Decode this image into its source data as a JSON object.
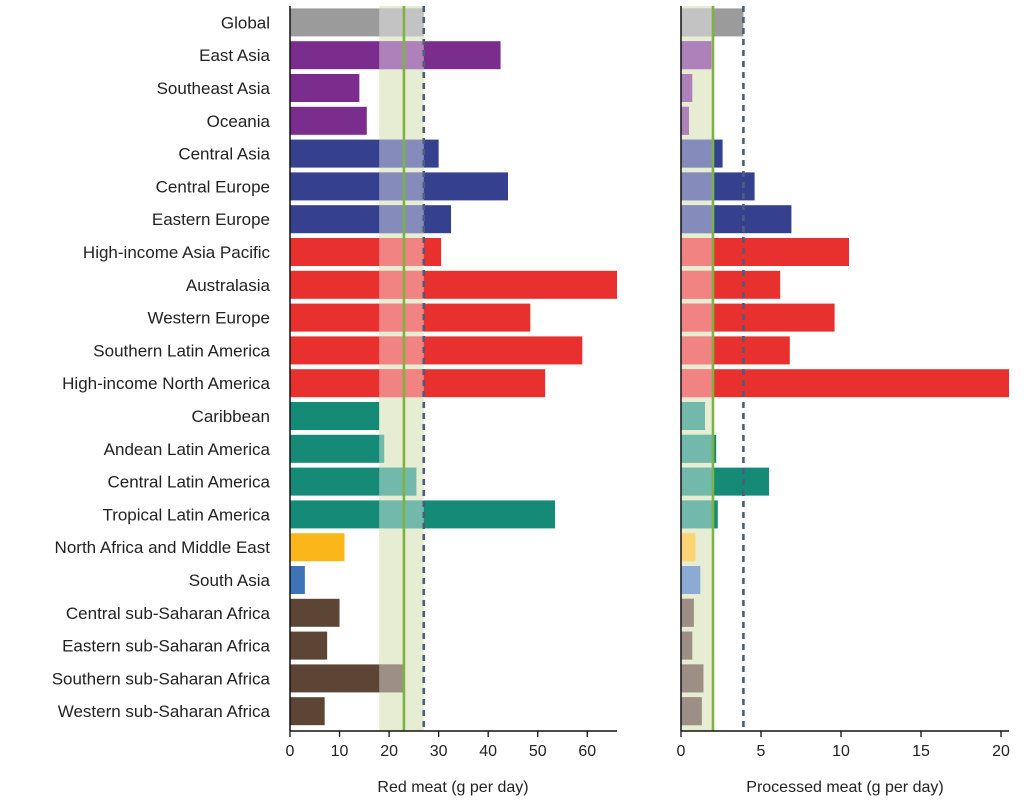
{
  "colors": {
    "global": "#9b9b9b",
    "asia": "#7b2d8e",
    "central_asia_europe": "#35408f",
    "high_income": "#e8312f",
    "latin_america": "#158a76",
    "north_africa": "#fbb71a",
    "south_asia": "#3f73b8",
    "sub_saharan": "#5d4536",
    "recommended_band": "#e6edd2",
    "optimal_line": "#7cb342",
    "global_mean_line": "#4c5f7a"
  },
  "chart_data": [
    {
      "type": "bar",
      "orientation": "horizontal",
      "xlabel": "Red meat (g per day)",
      "xlim": [
        0,
        66
      ],
      "xticks": [
        0,
        10,
        20,
        30,
        40,
        50,
        60
      ],
      "categories": [
        "Global",
        "East Asia",
        "Southeast Asia",
        "Oceania",
        "Central Asia",
        "Central Europe",
        "Eastern Europe",
        "High-income Asia Pacific",
        "Australasia",
        "Western Europe",
        "Southern Latin America",
        "High-income North America",
        "Caribbean",
        "Andean Latin America",
        "Central Latin America",
        "Tropical Latin America",
        "North Africa and Middle East",
        "South Asia",
        "Central sub-Saharan Africa",
        "Eastern sub-Saharan Africa",
        "Southern sub-Saharan Africa",
        "Western sub-Saharan Africa"
      ],
      "color_groups": [
        "global",
        "asia",
        "asia",
        "asia",
        "central_asia_europe",
        "central_asia_europe",
        "central_asia_europe",
        "high_income",
        "high_income",
        "high_income",
        "high_income",
        "high_income",
        "latin_america",
        "latin_america",
        "latin_america",
        "latin_america",
        "north_africa",
        "south_asia",
        "sub_saharan",
        "sub_saharan",
        "sub_saharan",
        "sub_saharan"
      ],
      "values": [
        27,
        42.5,
        14,
        15.5,
        30,
        44,
        32.5,
        30.5,
        66,
        48.5,
        59,
        51.5,
        18,
        19,
        25.5,
        53.5,
        11,
        3,
        10,
        7.5,
        23,
        7
      ],
      "recommended_range": [
        18,
        27
      ],
      "optimal_value": 23,
      "global_mean": 27
    },
    {
      "type": "bar",
      "orientation": "horizontal",
      "xlabel": "Processed meat (g per day)",
      "xlim": [
        0,
        20.5
      ],
      "xticks": [
        0,
        5,
        10,
        15,
        20
      ],
      "categories": [
        "Global",
        "East Asia",
        "Southeast Asia",
        "Oceania",
        "Central Asia",
        "Central Europe",
        "Eastern Europe",
        "High-income Asia Pacific",
        "Australasia",
        "Western Europe",
        "Southern Latin America",
        "High-income North America",
        "Caribbean",
        "Andean Latin America",
        "Central Latin America",
        "Tropical Latin America",
        "North Africa and Middle East",
        "South Asia",
        "Central sub-Saharan Africa",
        "Eastern sub-Saharan Africa",
        "Southern sub-Saharan Africa",
        "Western sub-Saharan Africa"
      ],
      "color_groups": [
        "global",
        "asia",
        "asia",
        "asia",
        "central_asia_europe",
        "central_asia_europe",
        "central_asia_europe",
        "high_income",
        "high_income",
        "high_income",
        "high_income",
        "high_income",
        "latin_america",
        "latin_america",
        "latin_america",
        "latin_america",
        "north_africa",
        "south_asia",
        "sub_saharan",
        "sub_saharan",
        "sub_saharan",
        "sub_saharan"
      ],
      "values": [
        3.9,
        1.9,
        0.7,
        0.5,
        2.6,
        4.6,
        6.9,
        10.5,
        6.2,
        9.6,
        6.8,
        20.5,
        1.5,
        2.2,
        5.5,
        2.3,
        0.9,
        1.2,
        0.8,
        0.7,
        1.4,
        1.3
      ],
      "recommended_range": [
        0,
        2
      ],
      "optimal_value": 2,
      "global_mean": 3.9
    }
  ]
}
